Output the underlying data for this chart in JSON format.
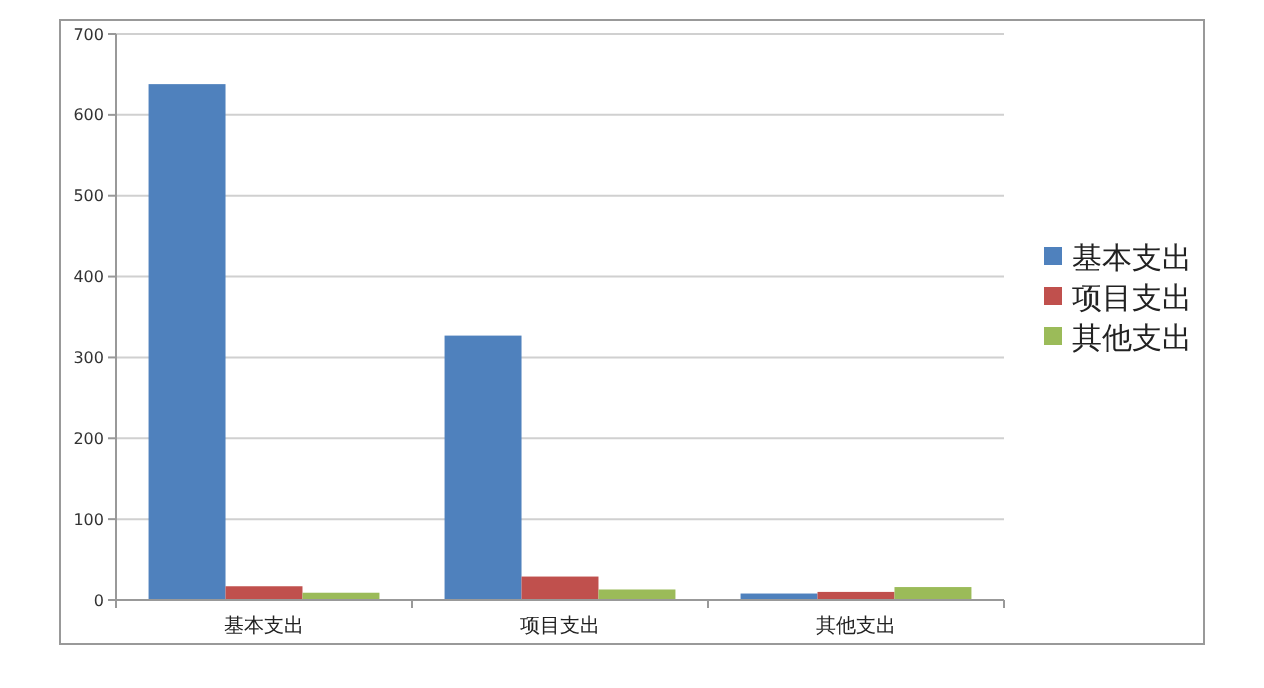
{
  "chart_data": {
    "type": "bar",
    "categories": [
      "基本支出",
      "项目支出",
      "其他支出"
    ],
    "series": [
      {
        "name": "基本支出",
        "color": "#4f81bd",
        "values": [
          638,
          327,
          8
        ]
      },
      {
        "name": "项目支出",
        "color": "#c0504d",
        "values": [
          17,
          29,
          10
        ]
      },
      {
        "name": "其他支出",
        "color": "#9bbb59",
        "values": [
          9,
          13,
          16
        ]
      }
    ],
    "ylim": [
      0,
      700
    ],
    "yticks": [
      0,
      100,
      200,
      300,
      400,
      500,
      600,
      700
    ],
    "grid": "y",
    "legend": "right"
  }
}
